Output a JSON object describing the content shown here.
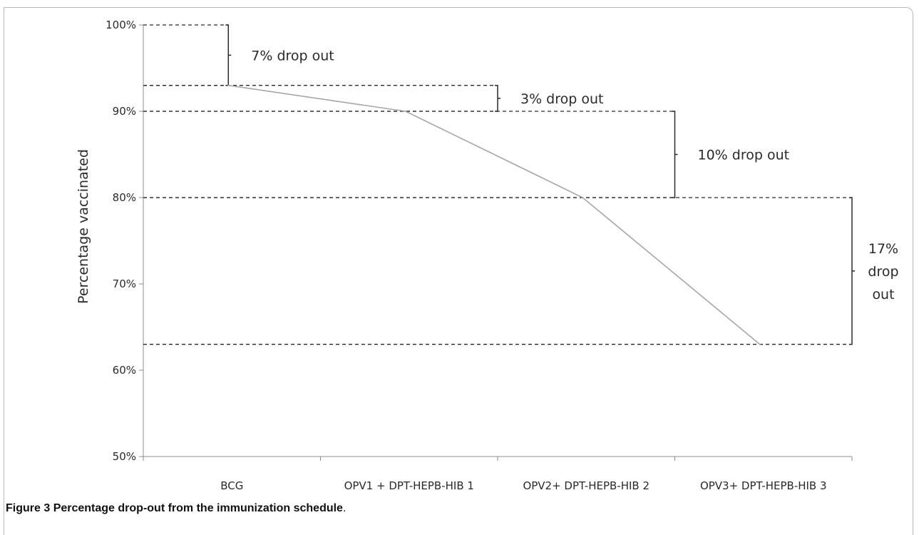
{
  "chart_data": {
    "type": "line",
    "title": "",
    "xlabel": "",
    "ylabel": "Percentage vaccinated",
    "categories": [
      "BCG",
      "OPV1 + DPT-HEPB-HIB 1",
      "OPV2+ DPT-HEPB-HIB 2",
      "OPV3+ DPT-HEPB-HIB 3"
    ],
    "series": [
      {
        "values": [
          93,
          90,
          80,
          63
        ]
      }
    ],
    "ylim": [
      50,
      100
    ],
    "y_ticks": [
      "50%",
      "60%",
      "70%",
      "80%",
      "90%",
      "100%"
    ],
    "y_tick_values": [
      50,
      60,
      70,
      80,
      90,
      100
    ],
    "grid": false,
    "line_color": "#a6a6a6",
    "annotations": [
      {
        "lines": [
          "7% drop out"
        ],
        "from": 100,
        "to": 93,
        "after_category": 0
      },
      {
        "lines": [
          "3% drop out"
        ],
        "from": 93,
        "to": 90,
        "after_category": 1
      },
      {
        "lines": [
          "10% drop out"
        ],
        "from": 90,
        "to": 80,
        "after_category": 2
      },
      {
        "lines": [
          "17%",
          "drop",
          "out"
        ],
        "from": 80,
        "to": 63,
        "after_category": 3
      }
    ]
  },
  "caption": {
    "label": "Figure 3",
    "title": "Percentage drop-out from the immunization schedule",
    "end": "."
  }
}
